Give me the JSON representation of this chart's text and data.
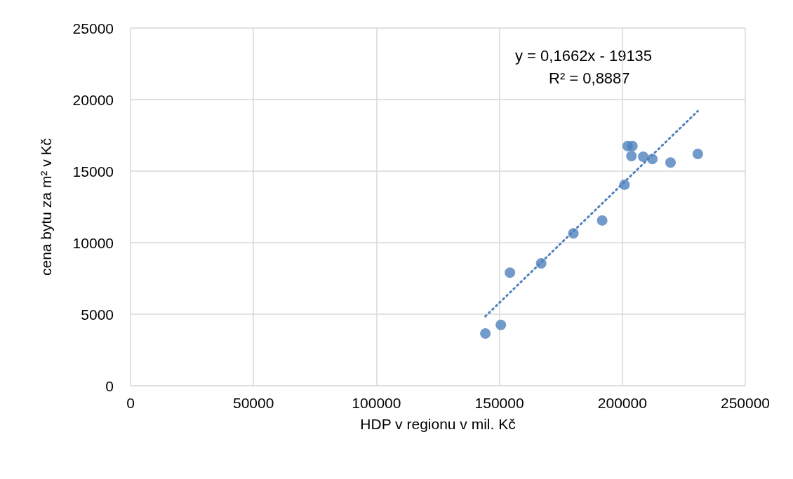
{
  "chart_data": {
    "type": "scatter",
    "xlabel": "HDP v regionu v mil. Kč",
    "ylabel": "cena bytu za m² v Kč",
    "xlim": [
      0,
      250000
    ],
    "xticks": [
      0,
      50000,
      100000,
      150000,
      200000,
      250000
    ],
    "ylim": [
      0,
      25000
    ],
    "yticks": [
      0,
      5000,
      10000,
      15000,
      20000,
      25000
    ],
    "grid": true,
    "marker": "circle",
    "series": [
      {
        "color": "#4f81bd",
        "x": [
          144300,
          150600,
          154300,
          167000,
          180100,
          191800,
          200900,
          202200,
          204100,
          203700,
          208500,
          212200,
          219600,
          230700
        ],
        "values": [
          3650,
          4250,
          7900,
          8550,
          10650,
          11550,
          14050,
          16750,
          16750,
          16050,
          16000,
          15850,
          15600,
          16200
        ]
      },
      {
        "type": "line",
        "line_style": "dotted",
        "marker": "none",
        "color": "#4f81bd",
        "x": [
          144300,
          230700
        ],
        "values": [
          4850,
          19200
        ]
      }
    ],
    "annotations": [
      "y = 0,1662x - 19135",
      "R² = 0,8887"
    ]
  }
}
